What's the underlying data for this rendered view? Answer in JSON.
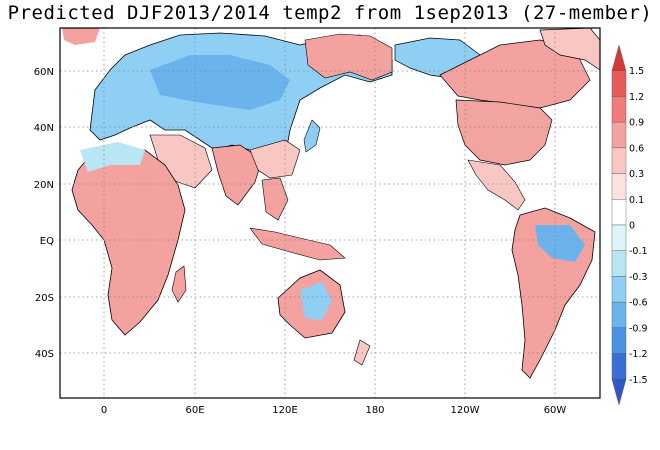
{
  "title": "Predicted DJF2013/2014 temp2 from 1sep2013 (27-member)",
  "map": {
    "lat_labels": [
      "60N",
      "40N",
      "20N",
      "EQ",
      "20S",
      "40S"
    ],
    "lon_labels": [
      "0",
      "60E",
      "120E",
      "180",
      "120W",
      "60W"
    ],
    "grid": "dotted",
    "projection": "cylindrical, centered on the date line"
  },
  "colorbar": {
    "labels": [
      "1.5",
      "1.2",
      "0.9",
      "0.6",
      "0.3",
      "0.1",
      "0",
      "-0.1",
      "-0.3",
      "-0.6",
      "-0.9",
      "-1.2",
      "-1.5"
    ],
    "colors": [
      "#d43a3a",
      "#e65a5a",
      "#f07b78",
      "#f4a29f",
      "#f8c6c3",
      "#fbe2e0",
      "#ffffff",
      "#ddf5f8",
      "#b8e6f4",
      "#8fcff3",
      "#6ab3ed",
      "#4a93e2",
      "#3b6fd3",
      "#2f58c4"
    ]
  },
  "regions": [
    {
      "id": "north-america",
      "color": "#f2a4a1"
    },
    {
      "id": "alaska",
      "color": "#8fcff3"
    },
    {
      "id": "greenland",
      "color": "#ffffff"
    },
    {
      "id": "south-america",
      "color": "#f4a29f"
    },
    {
      "id": "europe-siberia",
      "color": "#8fcff3"
    },
    {
      "id": "east-russia",
      "color": "#f4a29f"
    },
    {
      "id": "africa",
      "color": "#f4a29f"
    },
    {
      "id": "india",
      "color": "#f4a29f"
    },
    {
      "id": "southeast-asia",
      "color": "#f4a29f"
    },
    {
      "id": "australia",
      "color": "#f4a29f"
    }
  ]
}
